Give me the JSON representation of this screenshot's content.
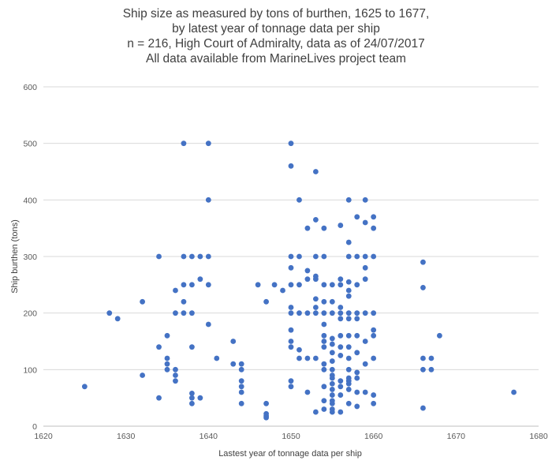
{
  "chart_data": {
    "type": "scatter",
    "title_lines": [
      "Ship size as measured by tons of burthen, 1625 to 1677,",
      "by latest year of tonnage data per ship",
      "n = 216, High Court of Admiralty, data as of 24/07/2017",
      "All data available from MarineLives project team"
    ],
    "xlabel": "Lastest year of tonnage data per ship",
    "ylabel": "Ship burthen (tons)",
    "xlim": [
      1620,
      1680
    ],
    "ylim": [
      0,
      600
    ],
    "x_ticks": [
      1620,
      1630,
      1640,
      1650,
      1660,
      1670,
      1680
    ],
    "y_ticks": [
      0,
      100,
      200,
      300,
      400,
      500,
      600
    ],
    "grid": "horizontal",
    "marker_color": "#4472C4",
    "points": [
      [
        1625,
        70
      ],
      [
        1628,
        200
      ],
      [
        1629,
        190
      ],
      [
        1632,
        220
      ],
      [
        1632,
        90
      ],
      [
        1634,
        300
      ],
      [
        1634,
        140
      ],
      [
        1634,
        50
      ],
      [
        1635,
        160
      ],
      [
        1635,
        120
      ],
      [
        1635,
        110
      ],
      [
        1635,
        100
      ],
      [
        1636,
        240
      ],
      [
        1636,
        200
      ],
      [
        1636,
        100
      ],
      [
        1636,
        90
      ],
      [
        1636,
        80
      ],
      [
        1637,
        500
      ],
      [
        1637,
        300
      ],
      [
        1637,
        250
      ],
      [
        1637,
        220
      ],
      [
        1637,
        200
      ],
      [
        1638,
        300
      ],
      [
        1638,
        250
      ],
      [
        1638,
        200
      ],
      [
        1638,
        140
      ],
      [
        1638,
        58
      ],
      [
        1638,
        50
      ],
      [
        1638,
        40
      ],
      [
        1639,
        300
      ],
      [
        1639,
        260
      ],
      [
        1639,
        50
      ],
      [
        1640,
        500
      ],
      [
        1640,
        400
      ],
      [
        1640,
        300
      ],
      [
        1640,
        250
      ],
      [
        1640,
        180
      ],
      [
        1641,
        120
      ],
      [
        1643,
        150
      ],
      [
        1643,
        110
      ],
      [
        1644,
        110
      ],
      [
        1644,
        100
      ],
      [
        1644,
        80
      ],
      [
        1644,
        70
      ],
      [
        1644,
        60
      ],
      [
        1644,
        40
      ],
      [
        1646,
        250
      ],
      [
        1647,
        220
      ],
      [
        1647,
        40
      ],
      [
        1647,
        22
      ],
      [
        1647,
        18
      ],
      [
        1647,
        15
      ],
      [
        1648,
        250
      ],
      [
        1649,
        240
      ],
      [
        1650,
        500
      ],
      [
        1650,
        460
      ],
      [
        1650,
        300
      ],
      [
        1650,
        280
      ],
      [
        1650,
        250
      ],
      [
        1650,
        210
      ],
      [
        1650,
        200
      ],
      [
        1650,
        170
      ],
      [
        1650,
        150
      ],
      [
        1650,
        140
      ],
      [
        1650,
        80
      ],
      [
        1650,
        70
      ],
      [
        1651,
        400
      ],
      [
        1651,
        300
      ],
      [
        1651,
        250
      ],
      [
        1651,
        200
      ],
      [
        1651,
        135
      ],
      [
        1651,
        120
      ],
      [
        1652,
        350
      ],
      [
        1652,
        275
      ],
      [
        1652,
        260
      ],
      [
        1652,
        200
      ],
      [
        1652,
        120
      ],
      [
        1652,
        60
      ],
      [
        1653,
        450
      ],
      [
        1653,
        365
      ],
      [
        1653,
        300
      ],
      [
        1653,
        265
      ],
      [
        1653,
        260
      ],
      [
        1653,
        225
      ],
      [
        1653,
        210
      ],
      [
        1653,
        200
      ],
      [
        1653,
        120
      ],
      [
        1653,
        25
      ],
      [
        1654,
        350
      ],
      [
        1654,
        300
      ],
      [
        1654,
        250
      ],
      [
        1654,
        220
      ],
      [
        1654,
        200
      ],
      [
        1654,
        180
      ],
      [
        1654,
        160
      ],
      [
        1654,
        150
      ],
      [
        1654,
        140
      ],
      [
        1654,
        110
      ],
      [
        1654,
        100
      ],
      [
        1654,
        70
      ],
      [
        1654,
        45
      ],
      [
        1654,
        30
      ],
      [
        1655,
        250
      ],
      [
        1655,
        220
      ],
      [
        1655,
        200
      ],
      [
        1655,
        155
      ],
      [
        1655,
        145
      ],
      [
        1655,
        130
      ],
      [
        1655,
        115
      ],
      [
        1655,
        100
      ],
      [
        1655,
        90
      ],
      [
        1655,
        85
      ],
      [
        1655,
        75
      ],
      [
        1655,
        65
      ],
      [
        1655,
        55
      ],
      [
        1655,
        45
      ],
      [
        1655,
        40
      ],
      [
        1655,
        30
      ],
      [
        1655,
        25
      ],
      [
        1656,
        355
      ],
      [
        1656,
        260
      ],
      [
        1656,
        250
      ],
      [
        1656,
        210
      ],
      [
        1656,
        200
      ],
      [
        1656,
        190
      ],
      [
        1656,
        160
      ],
      [
        1656,
        140
      ],
      [
        1656,
        125
      ],
      [
        1656,
        80
      ],
      [
        1656,
        70
      ],
      [
        1656,
        55
      ],
      [
        1656,
        25
      ],
      [
        1657,
        400
      ],
      [
        1657,
        325
      ],
      [
        1657,
        300
      ],
      [
        1657,
        255
      ],
      [
        1657,
        240
      ],
      [
        1657,
        230
      ],
      [
        1657,
        200
      ],
      [
        1657,
        190
      ],
      [
        1657,
        160
      ],
      [
        1657,
        140
      ],
      [
        1657,
        120
      ],
      [
        1657,
        100
      ],
      [
        1657,
        85
      ],
      [
        1657,
        80
      ],
      [
        1657,
        75
      ],
      [
        1657,
        65
      ],
      [
        1657,
        40
      ],
      [
        1658,
        370
      ],
      [
        1658,
        300
      ],
      [
        1658,
        250
      ],
      [
        1658,
        200
      ],
      [
        1658,
        190
      ],
      [
        1658,
        160
      ],
      [
        1658,
        130
      ],
      [
        1658,
        95
      ],
      [
        1658,
        85
      ],
      [
        1658,
        60
      ],
      [
        1658,
        35
      ],
      [
        1659,
        400
      ],
      [
        1659,
        360
      ],
      [
        1659,
        300
      ],
      [
        1659,
        280
      ],
      [
        1659,
        260
      ],
      [
        1659,
        200
      ],
      [
        1659,
        150
      ],
      [
        1659,
        110
      ],
      [
        1659,
        60
      ],
      [
        1660,
        370
      ],
      [
        1660,
        350
      ],
      [
        1660,
        300
      ],
      [
        1660,
        200
      ],
      [
        1660,
        170
      ],
      [
        1660,
        160
      ],
      [
        1660,
        120
      ],
      [
        1660,
        55
      ],
      [
        1660,
        40
      ],
      [
        1666,
        290
      ],
      [
        1666,
        245
      ],
      [
        1666,
        120
      ],
      [
        1666,
        100
      ],
      [
        1666,
        32
      ],
      [
        1667,
        120
      ],
      [
        1667,
        100
      ],
      [
        1668,
        160
      ],
      [
        1677,
        60
      ]
    ]
  }
}
